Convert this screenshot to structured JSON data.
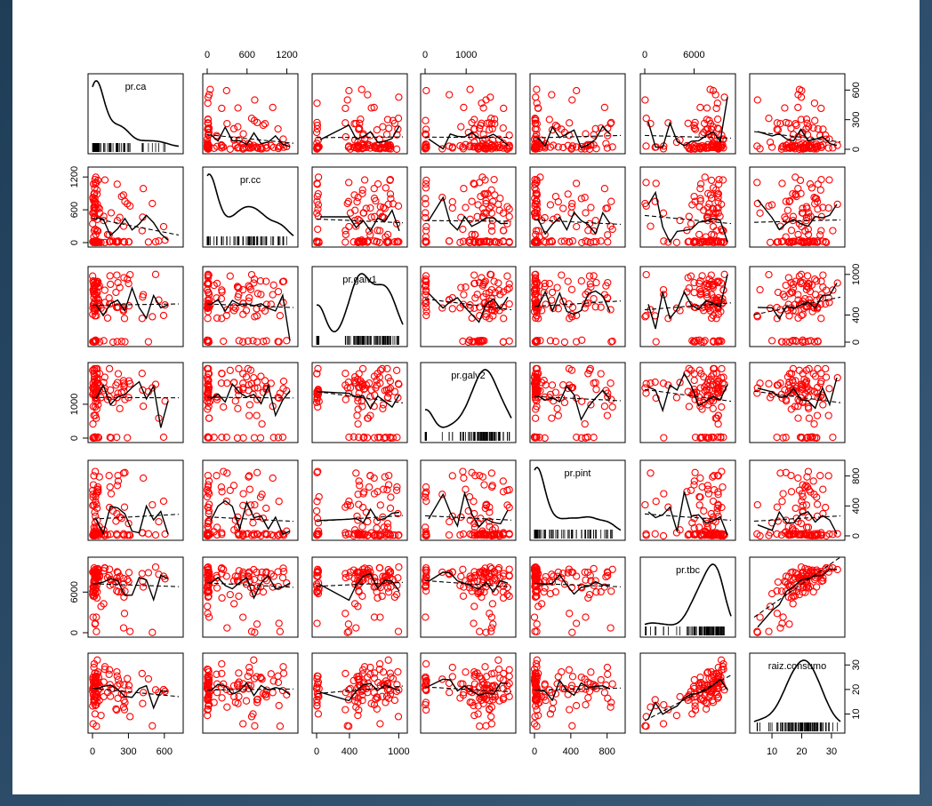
{
  "chart_data": {
    "type": "scatter",
    "title": "",
    "variables": [
      "pr.ca",
      "pr.cc",
      "pr.galv1",
      "pr.galv2",
      "pr.pint",
      "pr.tbc",
      "raiz.consumo"
    ],
    "ranges": [
      [
        0,
        720
      ],
      [
        0,
        1300
      ],
      [
        0,
        1050
      ],
      [
        0,
        2100
      ],
      [
        0,
        950
      ],
      [
        0,
        10500
      ],
      [
        4,
        33
      ]
    ],
    "ticks": {
      "pr.ca": [
        0,
        300,
        600
      ],
      "pr.cc": [
        0,
        600,
        1200
      ],
      "pr.galv1": [
        0,
        400,
        1000
      ],
      "pr.galv2": [
        0,
        1000
      ],
      "pr.pint": [
        0,
        400,
        800
      ],
      "pr.tbc": [
        0,
        6000
      ],
      "raiz.consumo": [
        10,
        20,
        30
      ]
    },
    "ticks_outer_top": {
      "pr.cc": [
        0,
        600,
        1200
      ],
      "pr.galv2": [
        0,
        1000
      ],
      "pr.tbc": [
        0,
        6000
      ]
    },
    "ticks_outer_bottom": {
      "pr.ca": [
        0,
        300,
        600
      ],
      "pr.galv1": [
        0,
        400,
        1000
      ],
      "pr.pint": [
        0,
        400,
        800
      ],
      "raiz.consumo": [
        10,
        20,
        30
      ]
    },
    "ticks_outer_left": {
      "pr.cc": [
        0,
        600,
        1200
      ],
      "pr.galv2": [
        0,
        1000
      ],
      "pr.tbc": [
        0,
        6000
      ]
    },
    "ticks_outer_right": {
      "pr.ca": [
        0,
        300,
        600
      ],
      "pr.galv1": [
        0,
        400,
        1000
      ],
      "pr.pint": [
        0,
        400,
        800
      ],
      "raiz.consumo": [
        10,
        20,
        30
      ]
    },
    "n_observations": 100,
    "point_color": "#ff0000",
    "line_color": "#000000",
    "diagonal": "density with rug",
    "off_diagonal": "scatter with smoother and dashed linear fit",
    "grid": false,
    "legend": "none"
  }
}
